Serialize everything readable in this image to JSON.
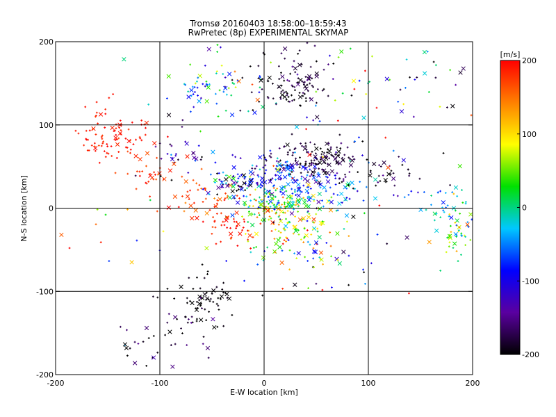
{
  "chart_data": {
    "type": "scatter",
    "title": "Tromsø 20160403 18:58:00–18:59:43",
    "subtitle": "RwPretec (8p) EXPERIMENTAL SKYMAP",
    "xlabel": "E-W location [km]",
    "ylabel": "N-S location [km]",
    "xlim": [
      -200,
      200
    ],
    "ylim": [
      -200,
      200
    ],
    "x_ticks": [
      -200,
      -100,
      0,
      100,
      200
    ],
    "y_ticks": [
      -200,
      -100,
      0,
      100,
      200
    ],
    "x_tick_labels": [
      "-200",
      "-100",
      "0",
      "100",
      "200"
    ],
    "y_tick_labels": [
      "-200",
      "-100",
      "0",
      "100",
      "200"
    ],
    "grid": true,
    "colorbar": {
      "label": "[m/s]",
      "range": [
        -200,
        200
      ],
      "ticks": [
        200,
        100,
        0,
        -100,
        -200
      ],
      "tick_labels": [
        "200",
        "100",
        "0",
        "-100",
        "-200"
      ],
      "colors": [
        "#000000",
        "#5a00a0",
        "#0000ff",
        "#00c8ff",
        "#00e000",
        "#ffff00",
        "#ff8000",
        "#ff0000"
      ]
    },
    "marker_styles": [
      "dot (+)",
      "cross (x)"
    ],
    "clusters": [
      {
        "cx": -140,
        "cy": 85,
        "sx": 18,
        "sy": 12,
        "v": 190,
        "vs": 10,
        "n": 70
      },
      {
        "cx": -160,
        "cy": 100,
        "sx": 10,
        "sy": 25,
        "v": 185,
        "vs": 10,
        "n": 20
      },
      {
        "cx": -30,
        "cy": 150,
        "sx": 30,
        "sy": 25,
        "v": -10,
        "vs": 80,
        "n": 50
      },
      {
        "cx": -60,
        "cy": 140,
        "sx": 15,
        "sy": 10,
        "v": -60,
        "vs": 30,
        "n": 30
      },
      {
        "cx": 25,
        "cy": 140,
        "sx": 18,
        "sy": 12,
        "v": -190,
        "vs": 15,
        "n": 80
      },
      {
        "cx": 30,
        "cy": 170,
        "sx": 20,
        "sy": 15,
        "v": -180,
        "vs": 20,
        "n": 30
      },
      {
        "cx": -90,
        "cy": 70,
        "sx": 20,
        "sy": 15,
        "v": -150,
        "vs": 40,
        "n": 30
      },
      {
        "cx": -110,
        "cy": 40,
        "sx": 15,
        "sy": 15,
        "v": 180,
        "vs": 15,
        "n": 30
      },
      {
        "cx": -60,
        "cy": 15,
        "sx": 20,
        "sy": 15,
        "v": 170,
        "vs": 20,
        "n": 40
      },
      {
        "cx": -25,
        "cy": 30,
        "sx": 15,
        "sy": 8,
        "v": -120,
        "vs": 80,
        "n": 60
      },
      {
        "cx": 20,
        "cy": 35,
        "sx": 30,
        "sy": 15,
        "v": -80,
        "vs": 40,
        "n": 150
      },
      {
        "cx": 50,
        "cy": 60,
        "sx": 20,
        "sy": 12,
        "v": -185,
        "vs": 15,
        "n": 140
      },
      {
        "cx": 10,
        "cy": 5,
        "sx": 20,
        "sy": 10,
        "v": 40,
        "vs": 60,
        "n": 120
      },
      {
        "cx": 20,
        "cy": -25,
        "sx": 25,
        "sy": 20,
        "v": 70,
        "vs": 60,
        "n": 100
      },
      {
        "cx": -30,
        "cy": -20,
        "sx": 15,
        "sy": 15,
        "v": 185,
        "vs": 15,
        "n": 50
      },
      {
        "cx": 60,
        "cy": 20,
        "sx": 30,
        "sy": 20,
        "v": -40,
        "vs": 60,
        "n": 60
      },
      {
        "cx": 110,
        "cy": 40,
        "sx": 25,
        "sy": 15,
        "v": -180,
        "vs": 30,
        "n": 40
      },
      {
        "cx": 130,
        "cy": 150,
        "sx": 45,
        "sy": 25,
        "v": -100,
        "vs": 100,
        "n": 30
      },
      {
        "cx": 180,
        "cy": 0,
        "sx": 15,
        "sy": 15,
        "v": -40,
        "vs": 30,
        "n": 40
      },
      {
        "cx": 185,
        "cy": -35,
        "sx": 10,
        "sy": 15,
        "v": 50,
        "vs": 40,
        "n": 40
      },
      {
        "cx": -55,
        "cy": -110,
        "sx": 15,
        "sy": 15,
        "v": -200,
        "vs": 10,
        "n": 60
      },
      {
        "cx": -80,
        "cy": -150,
        "sx": 25,
        "sy": 25,
        "v": -180,
        "vs": 30,
        "n": 30
      },
      {
        "cx": -120,
        "cy": -170,
        "sx": 12,
        "sy": 15,
        "v": -180,
        "vs": 40,
        "n": 15
      },
      {
        "cx": 60,
        "cy": -70,
        "sx": 40,
        "sy": 25,
        "v": -30,
        "vs": 120,
        "n": 50
      },
      {
        "cx": 100,
        "cy": 100,
        "sx": 60,
        "sy": 60,
        "v": 0,
        "vs": 150,
        "n": 60
      },
      {
        "cx": -150,
        "cy": -30,
        "sx": 40,
        "sy": 40,
        "v": 0,
        "vs": 150,
        "n": 20
      }
    ]
  }
}
